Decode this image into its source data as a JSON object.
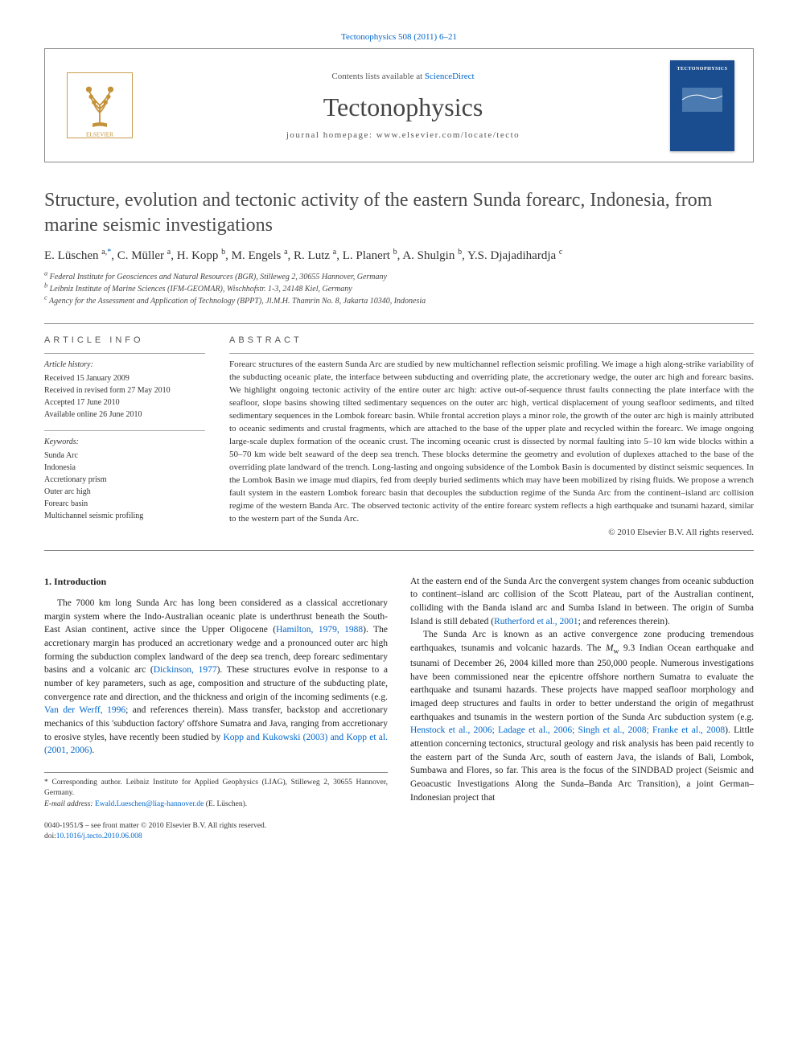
{
  "citation": "Tectonophysics 508 (2011) 6–21",
  "header": {
    "contents_prefix": "Contents lists available at ",
    "contents_link": "ScienceDirect",
    "journal": "Tectonophysics",
    "homepage": "journal homepage: www.elsevier.com/locate/tecto",
    "cover_label": "TECTONOPHYSICS",
    "logo_color": "#ff8a00",
    "cover_color": "#1a4d8f"
  },
  "title": "Structure, evolution and tectonic activity of the eastern Sunda forearc, Indonesia, from marine seismic investigations",
  "authors_html": "E. Lüschen <sup>a,</sup><sup class='ast'>*</sup>, C. Müller <sup>a</sup>, H. Kopp <sup>b</sup>, M. Engels <sup>a</sup>, R. Lutz <sup>a</sup>, L. Planert <sup>b</sup>, A. Shulgin <sup>b</sup>, Y.S. Djajadihardja <sup>c</sup>",
  "affiliations": {
    "a": "Federal Institute for Geosciences and Natural Resources (BGR), Stilleweg 2, 30655 Hannover, Germany",
    "b": "Leibniz Institute of Marine Sciences (IFM-GEOMAR), Wischhofstr. 1-3, 24148 Kiel, Germany",
    "c": "Agency for the Assessment and Application of Technology (BPPT), Jl.M.H. Thamrin No. 8, Jakarta 10340, Indonesia"
  },
  "info": {
    "label": "ARTICLE INFO",
    "history_heading": "Article history:",
    "history": [
      "Received 15 January 2009",
      "Received in revised form 27 May 2010",
      "Accepted 17 June 2010",
      "Available online 26 June 2010"
    ],
    "keywords_heading": "Keywords:",
    "keywords": [
      "Sunda Arc",
      "Indonesia",
      "Accretionary prism",
      "Outer arc high",
      "Forearc basin",
      "Multichannel seismic profiling"
    ]
  },
  "abstract": {
    "label": "ABSTRACT",
    "text": "Forearc structures of the eastern Sunda Arc are studied by new multichannel reflection seismic profiling. We image a high along-strike variability of the subducting oceanic plate, the interface between subducting and overriding plate, the accretionary wedge, the outer arc high and forearc basins. We highlight ongoing tectonic activity of the entire outer arc high: active out-of-sequence thrust faults connecting the plate interface with the seafloor, slope basins showing tilted sedimentary sequences on the outer arc high, vertical displacement of young seafloor sediments, and tilted sedimentary sequences in the Lombok forearc basin. While frontal accretion plays a minor role, the growth of the outer arc high is mainly attributed to oceanic sediments and crustal fragments, which are attached to the base of the upper plate and recycled within the forearc. We image ongoing large-scale duplex formation of the oceanic crust. The incoming oceanic crust is dissected by normal faulting into 5–10 km wide blocks within a 50–70 km wide belt seaward of the deep sea trench. These blocks determine the geometry and evolution of duplexes attached to the base of the overriding plate landward of the trench. Long-lasting and ongoing subsidence of the Lombok Basin is documented by distinct seismic sequences. In the Lombok Basin we image mud diapirs, fed from deeply buried sediments which may have been mobilized by rising fluids. We propose a wrench fault system in the eastern Lombok forearc basin that decouples the subduction regime of the Sunda Arc from the continent–island arc collision regime of the western Banda Arc. The observed tectonic activity of the entire forearc system reflects a high earthquake and tsunami hazard, similar to the western part of the Sunda Arc.",
    "copyright": "© 2010 Elsevier B.V. All rights reserved."
  },
  "body": {
    "heading": "1. Introduction",
    "col1_p1": "The 7000 km long Sunda Arc has long been considered as a classical accretionary margin system where the Indo-Australian oceanic plate is underthrust beneath the South-East Asian continent, active since the Upper Oligocene (Hamilton, 1979, 1988). The accretionary margin has produced an accretionary wedge and a pronounced outer arc high forming the subduction complex landward of the deep sea trench, deep forearc sedimentary basins and a volcanic arc (Dickinson, 1977). These structures evolve in response to a number of key parameters, such as age, composition and structure of the subducting plate, convergence rate and direction, and the thickness and origin of the incoming sediments (e.g. Van der Werff, 1996; and references therein). Mass transfer, backstop and accretionary mechanics of this 'subduction factory' offshore Sumatra and Java, ranging from accretionary to erosive styles, have recently been studied by Kopp and Kukowski (2003) and Kopp et al. (2001, 2006).",
    "col2_p1": "At the eastern end of the Sunda Arc the convergent system changes from oceanic subduction to continent–island arc collision of the Scott Plateau, part of the Australian continent, colliding with the Banda island arc and Sumba Island in between. The origin of Sumba Island is still debated (Rutherford et al., 2001; and references therein).",
    "col2_p2": "The Sunda Arc is known as an active convergence zone producing tremendous earthquakes, tsunamis and volcanic hazards. The Mw 9.3 Indian Ocean earthquake and tsunami of December 26, 2004 killed more than 250,000 people. Numerous investigations have been commissioned near the epicentre offshore northern Sumatra to evaluate the earthquake and tsunami hazards. These projects have mapped seafloor morphology and imaged deep structures and faults in order to better understand the origin of megathrust earthquakes and tsunamis in the western portion of the Sunda Arc subduction system (e.g. Henstock et al., 2006; Ladage et al., 2006; Singh et al., 2008; Franke et al., 2008). Little attention concerning tectonics, structural geology and risk analysis has been paid recently to the eastern part of the Sunda Arc, south of eastern Java, the islands of Bali, Lombok, Sumbawa and Flores, so far. This area is the focus of the SINDBAD project (Seismic and Geoacustic Investigations Along the Sunda–Banda Arc Transition), a joint German–Indonesian project that"
  },
  "footnote": {
    "corr": "* Corresponding author. Leibniz Institute for Applied Geophysics (LIAG), Stilleweg 2, 30655 Hannover, Germany.",
    "email_label": "E-mail address: ",
    "email": "Ewald.Lueschen@liag-hannover.de",
    "email_attr": " (E. Lüschen)."
  },
  "doi": {
    "line1": "0040-1951/$ – see front matter © 2010 Elsevier B.V. All rights reserved.",
    "line2_prefix": "doi:",
    "line2_link": "10.1016/j.tecto.2010.06.008"
  },
  "colors": {
    "link": "#0066cc",
    "text": "#333333",
    "rule": "#888888"
  }
}
